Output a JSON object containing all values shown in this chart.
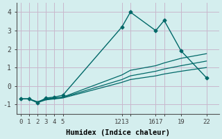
{
  "xlabel": "Humidex (Indice chaleur)",
  "bg_color": "#d4eeee",
  "grid_color": "#c8b8cc",
  "line_color": "#006868",
  "xlim": [
    -0.5,
    23.5
  ],
  "ylim": [
    -1.5,
    4.5
  ],
  "x_tick_positions": [
    0,
    1,
    2,
    3,
    4,
    5,
    12,
    13,
    16,
    17,
    19,
    22
  ],
  "x_tick_labels": [
    "0",
    "1",
    "2",
    "3",
    "4",
    "5",
    "1213",
    "",
    "1617",
    "",
    "19",
    "22"
  ],
  "y_ticks": [
    -1,
    0,
    1,
    2,
    3,
    4
  ],
  "line1_x": [
    0,
    1,
    2,
    3,
    4,
    5,
    12,
    13,
    16,
    17,
    19,
    22
  ],
  "line1_y": [
    -0.7,
    -0.7,
    -0.9,
    -0.65,
    -0.6,
    -0.5,
    3.2,
    4.0,
    3.0,
    3.55,
    1.9,
    0.45
  ],
  "line2_x": [
    0,
    1,
    2,
    3,
    4,
    5,
    12,
    13,
    16,
    17,
    19,
    22
  ],
  "line2_y": [
    -0.7,
    -0.7,
    -0.85,
    -0.7,
    -0.65,
    -0.6,
    0.6,
    0.85,
    1.1,
    1.25,
    1.5,
    1.75
  ],
  "line3_x": [
    0,
    1,
    2,
    3,
    4,
    5,
    12,
    13,
    16,
    17,
    19,
    22
  ],
  "line3_y": [
    -0.7,
    -0.7,
    -0.9,
    -0.75,
    -0.7,
    -0.65,
    0.2,
    0.35,
    0.55,
    0.65,
    0.8,
    1.0
  ],
  "line4_x": [
    0,
    1,
    2,
    3,
    4,
    5,
    12,
    13,
    16,
    17,
    19,
    22
  ],
  "line4_y": [
    -0.7,
    -0.7,
    -0.88,
    -0.72,
    -0.68,
    -0.62,
    0.35,
    0.55,
    0.8,
    0.92,
    1.1,
    1.35
  ]
}
